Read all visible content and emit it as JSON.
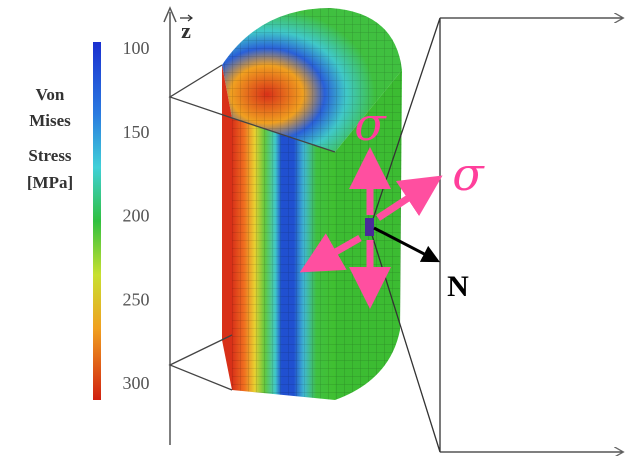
{
  "colorbar": {
    "title": [
      "Von",
      "Mises",
      "Stress",
      "[MPa]"
    ],
    "ticks": [
      100,
      150,
      200,
      250,
      300
    ]
  },
  "axis_label": "z",
  "annotations": {
    "sigma_left": "σ",
    "sigma_right": "σ",
    "normal": "N"
  }
}
